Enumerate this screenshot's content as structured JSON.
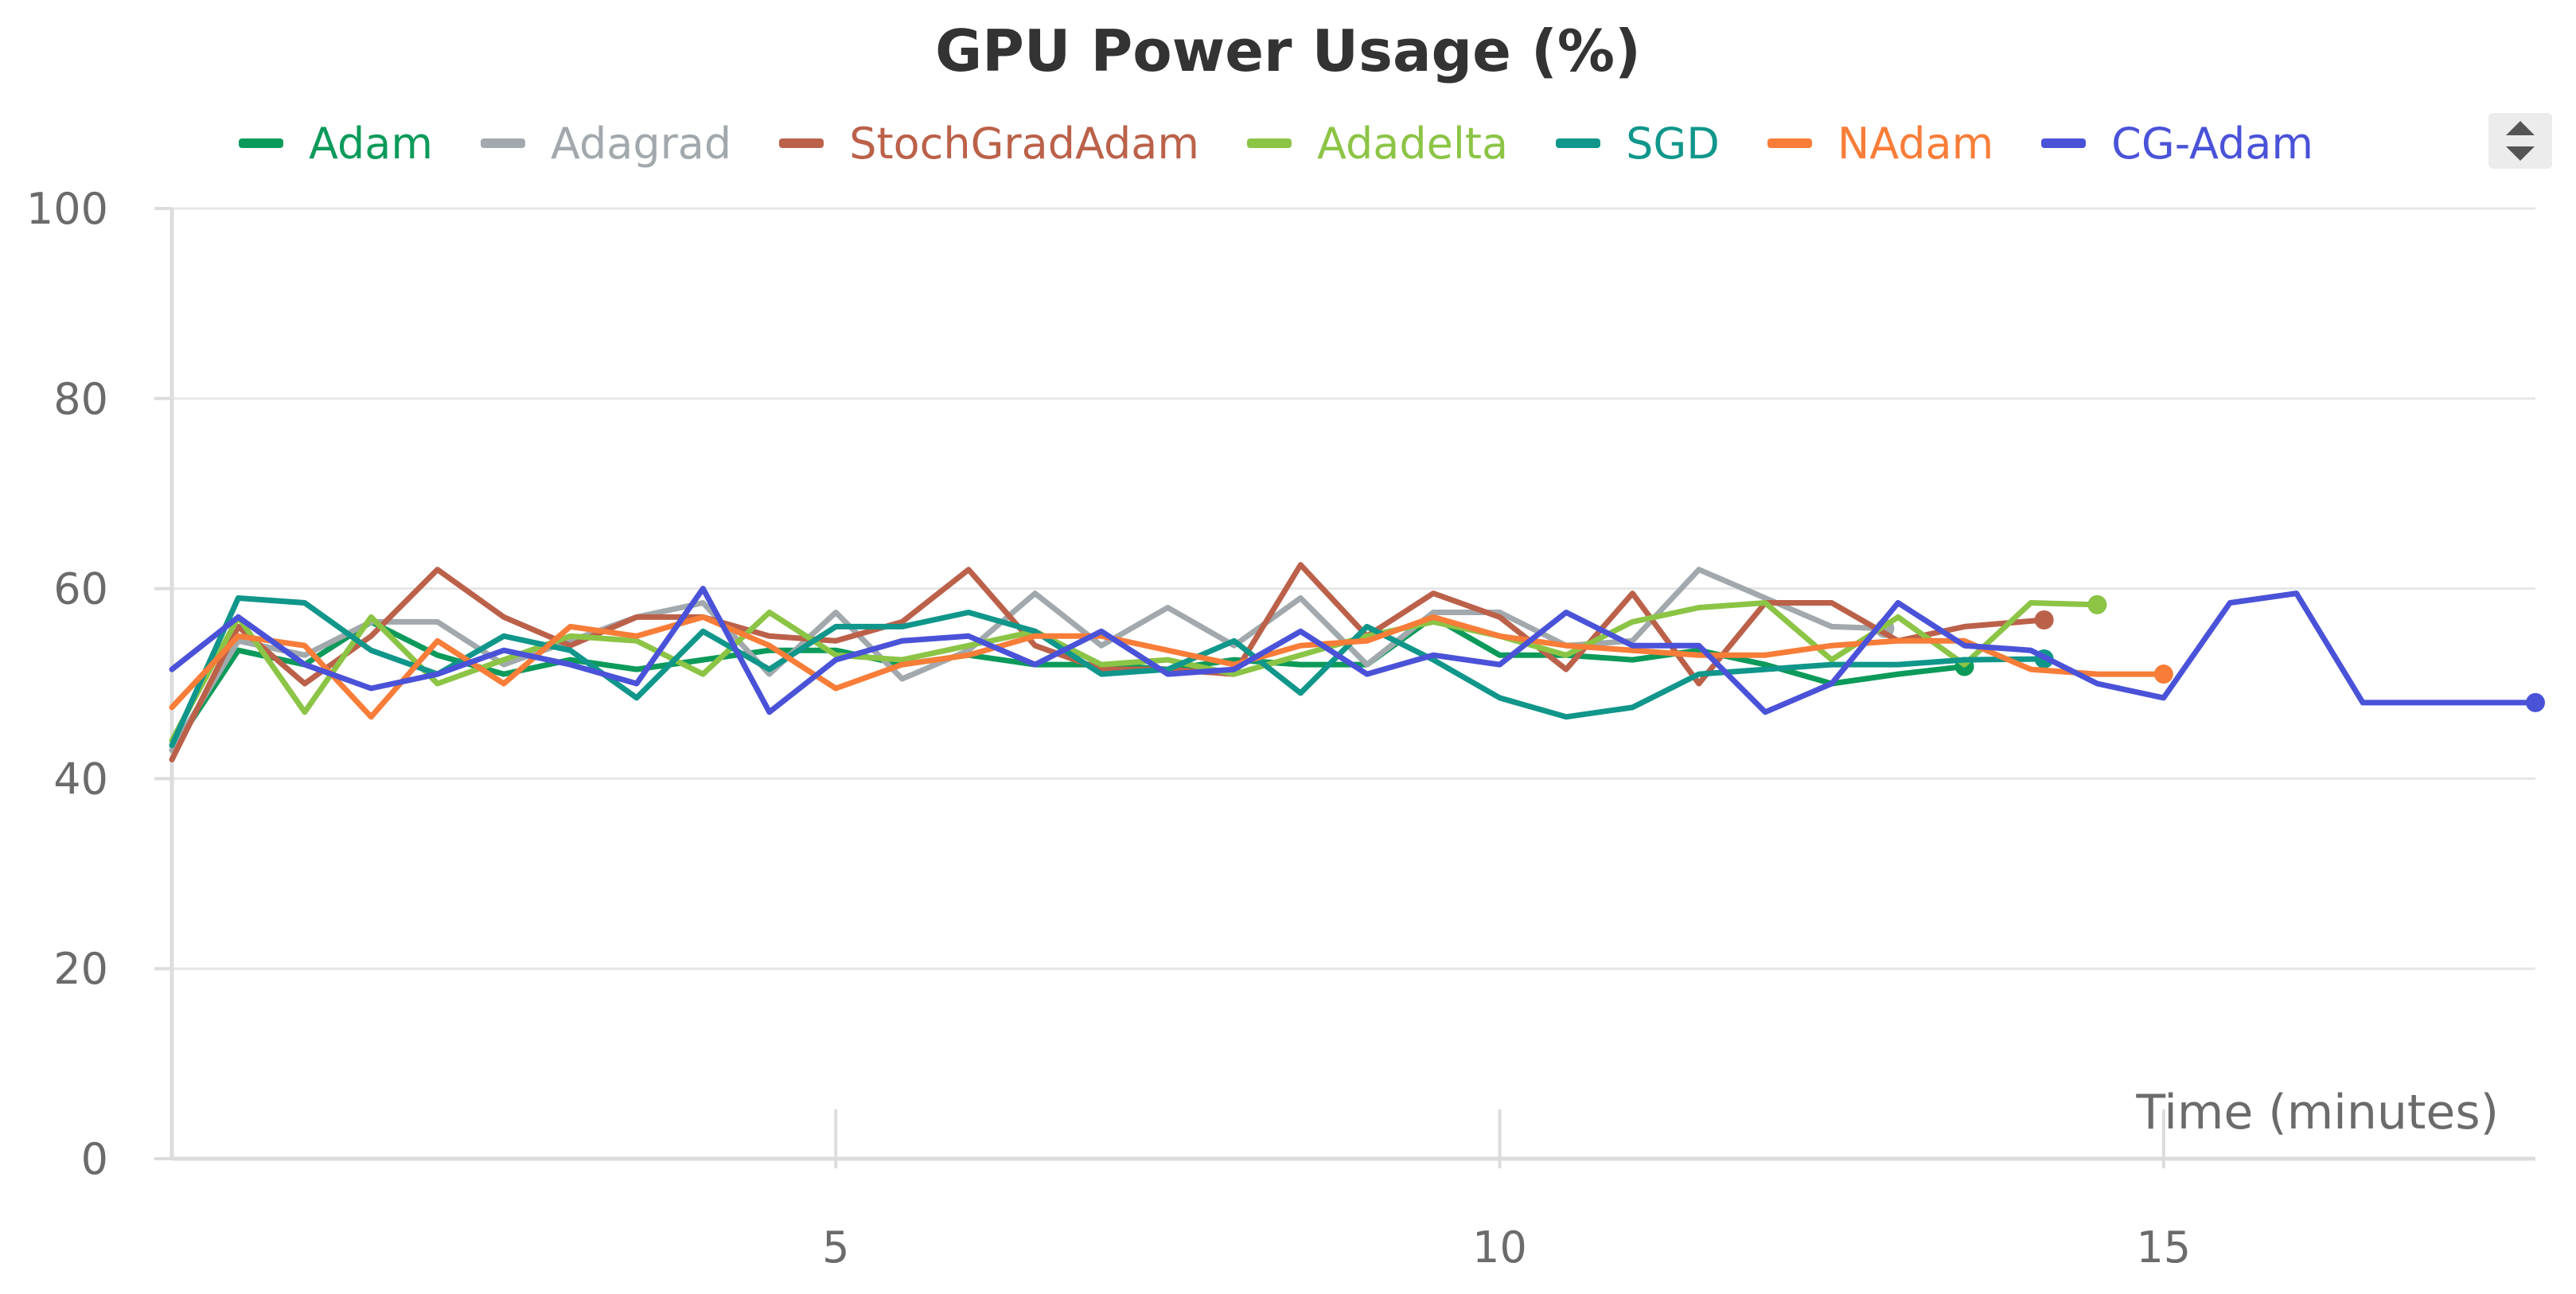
{
  "chart_data": {
    "type": "line",
    "title": "GPU Power Usage (%)",
    "xlabel": "Time (minutes)",
    "ylabel": "",
    "xlim": [
      0.0,
      17.8
    ],
    "ylim": [
      0,
      100
    ],
    "x_ticks": [
      5,
      10,
      15
    ],
    "y_ticks": [
      0,
      20,
      40,
      60,
      80,
      100
    ],
    "grid": true,
    "legend_position": "top",
    "series": [
      {
        "name": "Adam",
        "color": "#0c9a5a",
        "x": [
          0.0,
          0.5,
          1.0,
          1.5,
          2.0,
          2.5,
          3.0,
          3.5,
          4.0,
          4.5,
          5.0,
          5.5,
          6.0,
          6.5,
          7.0,
          7.5,
          8.0,
          8.5,
          9.0,
          9.5,
          10.0,
          10.5,
          11.0,
          11.5,
          12.0,
          12.5,
          13.0,
          13.5
        ],
        "y": [
          43.0,
          53.5,
          52.0,
          56.5,
          53.0,
          51.0,
          52.5,
          51.5,
          52.5,
          53.5,
          53.5,
          52.0,
          53.0,
          52.0,
          52.0,
          51.5,
          52.5,
          52.0,
          52.0,
          57.0,
          53.0,
          53.0,
          52.5,
          53.5,
          52.0,
          50.0,
          51.0,
          51.8
        ]
      },
      {
        "name": "Adagrad",
        "color": "#a1a9ad",
        "x": [
          0.0,
          0.5,
          1.0,
          1.5,
          2.0,
          2.5,
          3.0,
          3.5,
          4.0,
          4.5,
          5.0,
          5.5,
          6.0,
          6.5,
          7.0,
          7.5,
          8.0,
          8.5,
          9.0,
          9.5,
          10.0,
          10.5,
          11.0,
          11.5,
          12.0,
          12.5,
          12.9
        ],
        "y": [
          43.0,
          54.5,
          53.0,
          56.5,
          56.5,
          52.0,
          54.5,
          57.0,
          58.5,
          51.0,
          57.5,
          50.5,
          53.5,
          59.5,
          54.0,
          58.0,
          54.0,
          59.0,
          52.0,
          57.5,
          57.5,
          54.0,
          54.5,
          62.0,
          59.0,
          56.0,
          55.8
        ]
      },
      {
        "name": "StochGradAdam",
        "color": "#bb614a",
        "x": [
          0.0,
          0.5,
          1.0,
          1.5,
          2.0,
          2.5,
          3.0,
          3.5,
          4.0,
          4.5,
          5.0,
          5.5,
          6.0,
          6.5,
          7.0,
          7.5,
          8.0,
          8.5,
          9.0,
          9.5,
          10.0,
          10.5,
          11.0,
          11.5,
          12.0,
          12.5,
          13.0,
          13.5,
          14.1
        ],
        "y": [
          42.0,
          56.0,
          50.0,
          55.0,
          62.0,
          57.0,
          54.0,
          57.0,
          57.0,
          55.0,
          54.5,
          56.5,
          62.0,
          54.0,
          51.5,
          51.5,
          51.0,
          62.5,
          55.0,
          59.5,
          57.0,
          51.5,
          59.5,
          50.0,
          58.5,
          58.5,
          54.5,
          56.0,
          56.7
        ]
      },
      {
        "name": "Adadelta",
        "color": "#8cc446",
        "x": [
          0.0,
          0.5,
          1.0,
          1.5,
          2.0,
          2.5,
          3.0,
          3.5,
          4.0,
          4.5,
          5.0,
          5.5,
          6.0,
          6.5,
          7.0,
          7.5,
          8.0,
          8.5,
          9.0,
          9.5,
          10.0,
          10.5,
          11.0,
          11.5,
          12.0,
          12.5,
          13.0,
          13.5,
          14.0,
          14.5
        ],
        "y": [
          44.0,
          57.0,
          47.0,
          57.0,
          50.0,
          52.5,
          55.0,
          54.5,
          51.0,
          57.5,
          53.0,
          52.5,
          54.0,
          55.5,
          52.0,
          52.5,
          51.0,
          53.0,
          55.0,
          56.5,
          55.0,
          53.0,
          56.5,
          58.0,
          58.5,
          52.5,
          57.0,
          52.0,
          58.5,
          58.3
        ]
      },
      {
        "name": "SGD",
        "color": "#10968a",
        "x": [
          0.0,
          0.5,
          1.0,
          1.5,
          2.0,
          2.5,
          3.0,
          3.5,
          4.0,
          4.5,
          5.0,
          5.5,
          6.0,
          6.5,
          7.0,
          7.5,
          8.0,
          8.5,
          9.0,
          9.5,
          10.0,
          10.5,
          11.0,
          11.5,
          12.0,
          12.5,
          13.0,
          13.5,
          14.1
        ],
        "y": [
          43.5,
          59.0,
          58.5,
          53.5,
          51.0,
          55.0,
          53.5,
          48.5,
          55.5,
          51.5,
          56.0,
          56.0,
          57.5,
          55.5,
          51.0,
          51.5,
          54.5,
          49.0,
          56.0,
          52.5,
          48.5,
          46.5,
          47.5,
          51.0,
          51.5,
          52.0,
          52.0,
          52.5,
          52.6
        ]
      },
      {
        "name": "NAdam",
        "color": "#f77d38",
        "x": [
          0.0,
          0.5,
          1.0,
          1.5,
          2.0,
          2.5,
          3.0,
          3.5,
          4.0,
          4.5,
          5.0,
          5.5,
          6.0,
          6.5,
          7.0,
          7.5,
          8.0,
          8.5,
          9.0,
          9.5,
          10.0,
          10.5,
          11.0,
          11.5,
          12.0,
          12.5,
          13.0,
          13.5,
          14.0,
          14.5,
          15.0
        ],
        "y": [
          47.5,
          55.0,
          54.0,
          46.5,
          54.5,
          50.0,
          56.0,
          55.0,
          57.0,
          54.0,
          49.5,
          52.0,
          53.0,
          55.0,
          55.0,
          53.5,
          52.0,
          54.0,
          54.5,
          57.0,
          55.0,
          54.0,
          53.5,
          53.0,
          53.0,
          54.0,
          54.5,
          54.5,
          51.5,
          51.0,
          51.0
        ]
      },
      {
        "name": "CG-Adam",
        "color": "#4a52d8",
        "x": [
          0.0,
          0.5,
          1.0,
          1.5,
          2.0,
          2.5,
          3.0,
          3.5,
          4.0,
          4.5,
          5.0,
          5.5,
          6.0,
          6.5,
          7.0,
          7.5,
          8.0,
          8.5,
          9.0,
          9.5,
          10.0,
          10.5,
          11.0,
          11.5,
          12.0,
          12.5,
          13.0,
          13.5,
          14.0,
          14.5,
          15.0,
          15.5,
          16.0,
          16.5,
          17.0,
          17.5,
          17.8
        ],
        "y": [
          51.5,
          57.0,
          52.0,
          49.5,
          51.0,
          53.5,
          52.0,
          50.0,
          60.0,
          47.0,
          52.5,
          54.5,
          55.0,
          52.0,
          55.5,
          51.0,
          51.5,
          55.5,
          51.0,
          53.0,
          52.0,
          57.5,
          54.0,
          54.0,
          47.0,
          50.0,
          58.5,
          54.0,
          53.5,
          50.0,
          48.5,
          58.5,
          59.5,
          48.0,
          48.0,
          48.0,
          48.0
        ]
      }
    ]
  }
}
